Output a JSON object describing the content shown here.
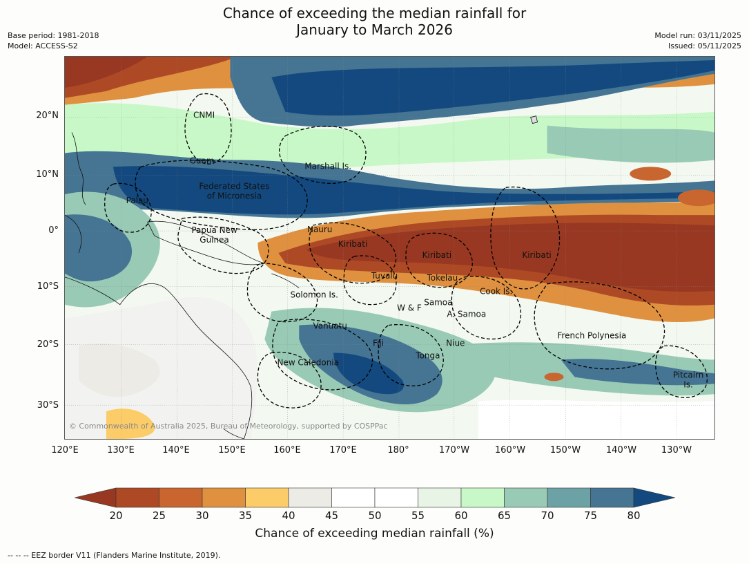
{
  "title_line1": "Chance of exceeding the median rainfall for",
  "title_line2": "January to March 2026",
  "base_period": "Base period: 1981-2018",
  "model": "Model: ACCESS-S2",
  "model_run": "Model run: 03/11/2025",
  "issued": "Issued: 05/11/2025",
  "lat_labels": [
    "20°N",
    "10°N",
    "0°",
    "10°S",
    "20°S",
    "30°S"
  ],
  "lon_labels": [
    "120°E",
    "130°E",
    "140°E",
    "150°E",
    "160°E",
    "170°E",
    "180°",
    "170°W",
    "160°W",
    "150°W",
    "140°W",
    "130°W"
  ],
  "regions": [
    "CNMI",
    "Guam",
    "Marshall Is.",
    "Federated States",
    "of Micronesia",
    "Palau",
    "Papua New",
    "Guinea",
    "Nauru",
    "Kiribati",
    "Kiribati",
    "Kiribati",
    "Tuvalu",
    "Tokelau",
    "Cook Is.",
    "Solomon Is.",
    "W & F",
    "Samoa",
    "A. Samoa",
    "Vanuatu",
    "Fiji",
    "Niue",
    "Tonga",
    "French Polynesia",
    "New Caledonia",
    "Pitcairn",
    "Is."
  ],
  "copyright": "© Commonwealth of Australia 2025, Bureau of Meteorology, supported by COSPPac",
  "colorbar": {
    "ticks": [
      "20",
      "25",
      "30",
      "35",
      "40",
      "45",
      "50",
      "55",
      "60",
      "65",
      "70",
      "75",
      "80"
    ],
    "colors": [
      "#ad4a25",
      "#c9662f",
      "#e0913f",
      "#fccc68",
      "#ecebe6",
      "#ffffff",
      "#ffffff",
      "#e8f5e6",
      "#c8f8c8",
      "#98cab5",
      "#6ca2a5",
      "#457593"
    ],
    "low_extend": "#983822",
    "high_extend": "#13497e",
    "label": "Chance of exceeding median rainfall (%)"
  },
  "footer": "--  --  -- EEZ border V11 (Flanders Marine Institute, 2019)."
}
